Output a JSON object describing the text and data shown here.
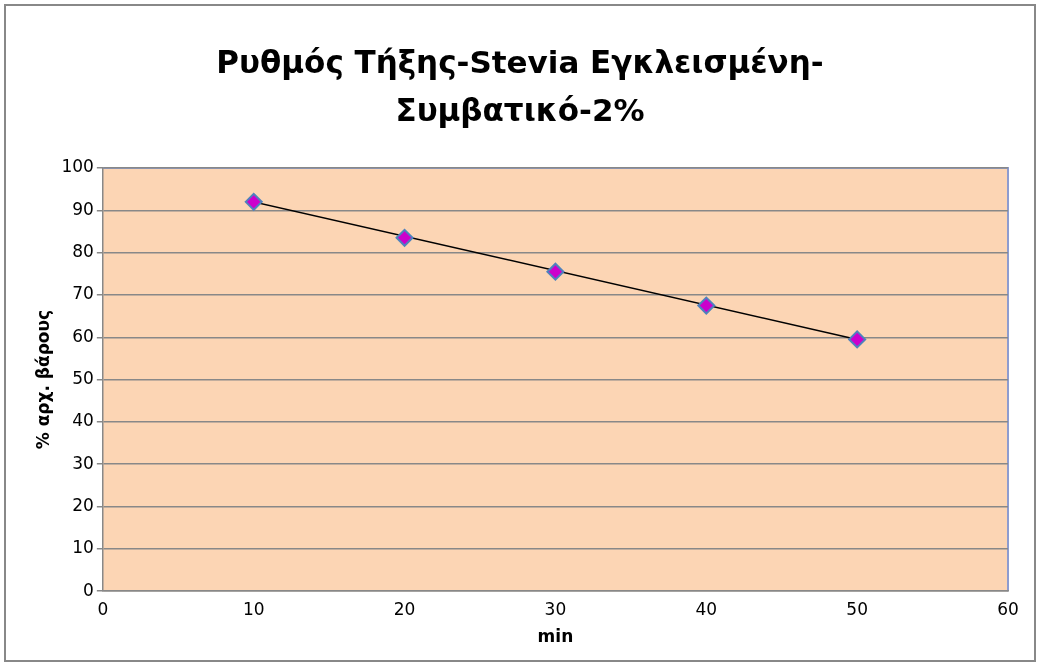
{
  "chart_data": {
    "type": "scatter",
    "title": "Ρυθμός Τήξης-Stevia Εγκλεισμένη-Συμβατικό-2%",
    "xlabel": "min",
    "ylabel": "% αρχ. βάρους",
    "xlim": [
      0,
      60
    ],
    "xticks": [
      0,
      10,
      20,
      30,
      40,
      50,
      60
    ],
    "ylim": [
      0,
      100
    ],
    "yticks": [
      0,
      10,
      20,
      30,
      40,
      50,
      60,
      70,
      80,
      90,
      100
    ],
    "grid": "y",
    "legend": false,
    "marker": "diamond",
    "series": [
      {
        "type": "line",
        "color": "#000000",
        "x": [
          10,
          50
        ],
        "values": [
          92,
          59.5
        ],
        "marker": "none"
      },
      {
        "color": "#cc00cc",
        "x": [
          10,
          20,
          30,
          40,
          50
        ],
        "values": [
          92,
          83.5,
          75.5,
          67.5,
          59.5
        ]
      }
    ]
  }
}
